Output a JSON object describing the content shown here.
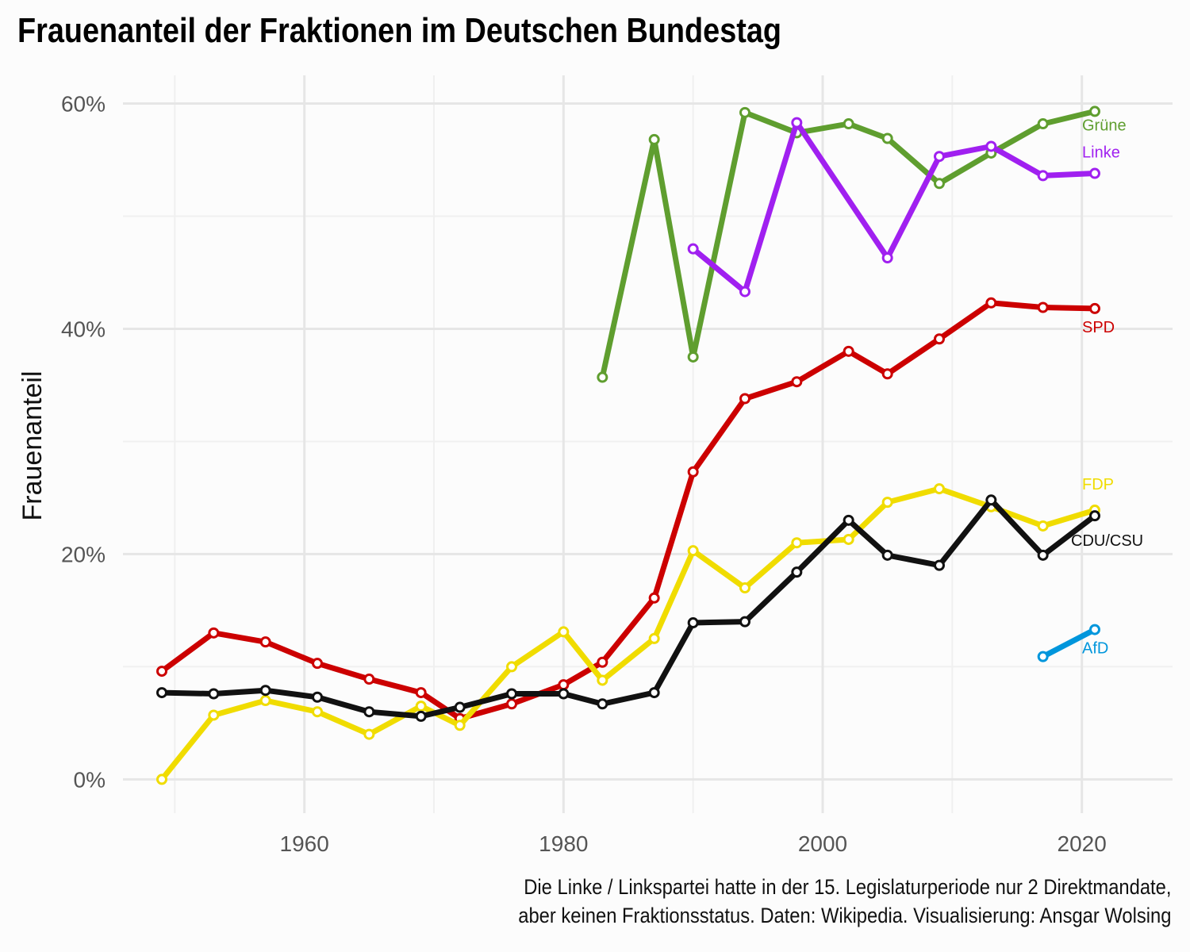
{
  "chart_data": {
    "type": "line",
    "title": "Frauenanteil der Fraktionen im Deutschen Bundestag",
    "xlabel": "",
    "ylabel": "Frauenanteil",
    "xlim": [
      1946,
      2027
    ],
    "ylim": [
      -3,
      62.5
    ],
    "x_ticks": [
      1960,
      1980,
      2000,
      2020
    ],
    "y_ticks": [
      0,
      20,
      40,
      60
    ],
    "y_tick_labels": [
      "0%",
      "20%",
      "40%",
      "60%"
    ],
    "grid": true,
    "series": [
      {
        "name": "Grüne",
        "color": "#5f9e2f",
        "x": [
          1983,
          1987,
          1990,
          1994,
          1998,
          2002,
          2005,
          2009,
          2013,
          2017,
          2021
        ],
        "y": [
          35.7,
          56.8,
          37.5,
          59.2,
          57.4,
          58.2,
          56.9,
          52.9,
          55.6,
          58.2,
          59.3
        ]
      },
      {
        "name": "Linke",
        "color": "#a020f0",
        "x": [
          1990,
          1994,
          1998,
          2005,
          2009,
          2013,
          2017,
          2021
        ],
        "y": [
          47.1,
          43.3,
          58.3,
          46.3,
          55.3,
          56.2,
          53.6,
          53.8
        ]
      },
      {
        "name": "SPD",
        "color": "#cc0000",
        "x": [
          1949,
          1953,
          1957,
          1961,
          1965,
          1969,
          1972,
          1976,
          1980,
          1983,
          1987,
          1990,
          1994,
          1998,
          2002,
          2005,
          2009,
          2013,
          2017,
          2021
        ],
        "y": [
          9.6,
          13.0,
          12.2,
          10.3,
          8.9,
          7.7,
          5.4,
          6.7,
          8.4,
          10.4,
          16.1,
          27.3,
          33.8,
          35.3,
          38.0,
          36.0,
          39.1,
          42.3,
          41.9,
          41.8
        ]
      },
      {
        "name": "FDP",
        "color": "#f0dc00",
        "x": [
          1949,
          1953,
          1957,
          1961,
          1965,
          1969,
          1972,
          1976,
          1980,
          1983,
          1987,
          1990,
          1994,
          1998,
          2002,
          2005,
          2009,
          2013,
          2017,
          2021
        ],
        "y": [
          0.0,
          5.7,
          7.0,
          6.0,
          4.0,
          6.5,
          4.8,
          10.0,
          13.1,
          8.8,
          12.5,
          20.3,
          17.0,
          21.0,
          21.3,
          24.6,
          25.8,
          24.2,
          22.5,
          23.9
        ]
      },
      {
        "name": "CDU/CSU",
        "color": "#111111",
        "x": [
          1949,
          1953,
          1957,
          1961,
          1965,
          1969,
          1972,
          1976,
          1980,
          1983,
          1987,
          1990,
          1994,
          1998,
          2002,
          2005,
          2009,
          2013,
          2017,
          2021
        ],
        "y": [
          7.7,
          7.6,
          7.9,
          7.3,
          6.0,
          5.6,
          6.4,
          7.6,
          7.6,
          6.7,
          7.7,
          13.9,
          14.0,
          18.4,
          23.0,
          19.9,
          19.0,
          24.8,
          19.9,
          23.4
        ]
      },
      {
        "name": "AfD",
        "color": "#0096dc",
        "x": [
          2017,
          2021
        ],
        "y": [
          10.9,
          13.3
        ]
      }
    ]
  },
  "caption": {
    "line1": "Die Linke / Linkspartei hatte in der 15. Legislaturperiode nur 2 Direktmandate,",
    "line2": "aber keinen Fraktionsstatus. Daten: Wikipedia. Visualisierung: Ansgar Wolsing"
  }
}
